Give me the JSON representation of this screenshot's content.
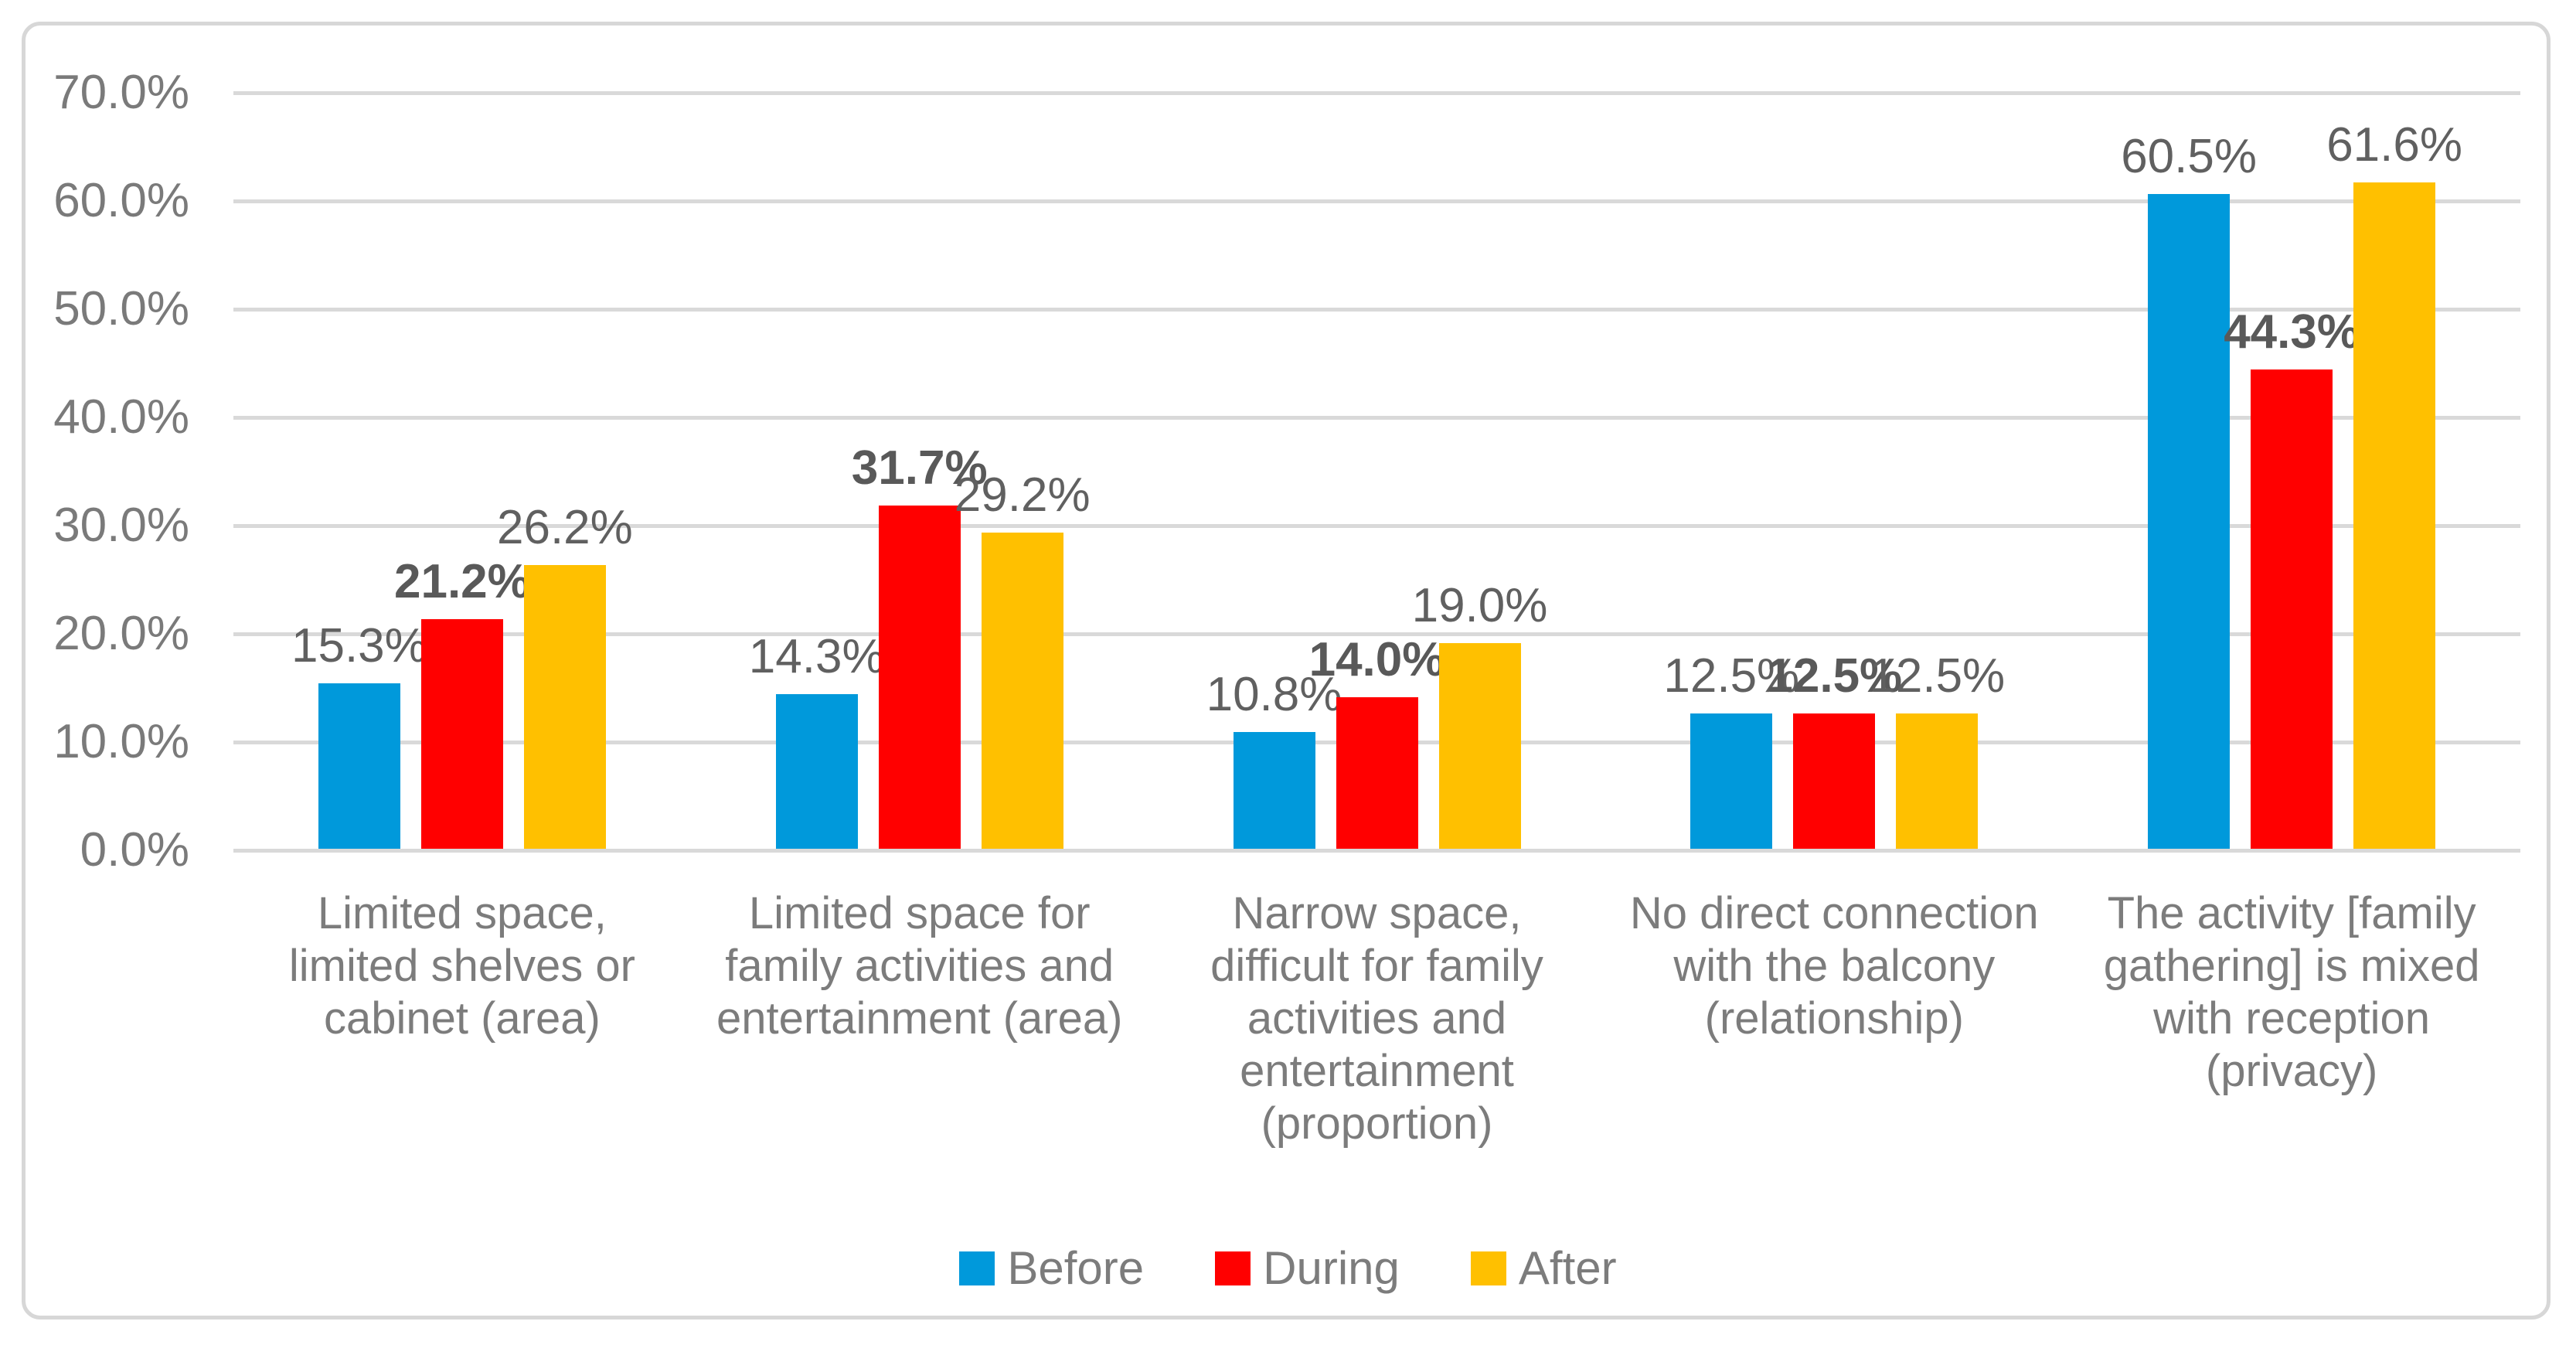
{
  "chart_data": {
    "type": "bar",
    "title": "",
    "xlabel": "",
    "ylabel": "",
    "ylim": [
      0,
      70
    ],
    "ytick_step": 10,
    "ytick_labels": [
      "0.0%",
      "10.0%",
      "20.0%",
      "30.0%",
      "40.0%",
      "50.0%",
      "60.0%",
      "70.0%"
    ],
    "grid": true,
    "legend_position": "bottom",
    "categories": [
      "Limited space,\nlimited shelves or\ncabinet (area)",
      "Limited space for\nfamily activities and\nentertainment (area)",
      "Narrow space,\ndifficult for family\nactivities and\nentertainment\n(proportion)",
      "No direct connection\nwith the balcony\n(relationship)",
      "The activity [family\ngathering] is mixed\nwith reception\n(privacy)"
    ],
    "series": [
      {
        "name": "Before",
        "color": "#0099db",
        "bold_labels": false,
        "values": [
          15.3,
          14.3,
          10.8,
          12.5,
          60.5
        ],
        "labels": [
          "15.3%",
          "14.3%",
          "10.8%",
          "12.5%",
          "60.5%"
        ]
      },
      {
        "name": "During",
        "color": "#ff0000",
        "bold_labels": true,
        "values": [
          21.2,
          31.7,
          14.0,
          12.5,
          44.3
        ],
        "labels": [
          "21.2%",
          "31.7%",
          "14.0%",
          "12.5%",
          "44.3%"
        ]
      },
      {
        "name": "After",
        "color": "#ffc000",
        "bold_labels": false,
        "values": [
          26.2,
          29.2,
          19.0,
          12.5,
          61.6
        ],
        "labels": [
          "26.2%",
          "29.2%",
          "19.0%",
          "12.5%",
          "61.6%"
        ]
      }
    ]
  },
  "colors": {
    "gridline": "#d9d9d9",
    "frame_border": "#d7d7d7",
    "axis_text": "#7a7a7a",
    "category_text": "#7c7c7c",
    "legend_text": "#7c7c7c",
    "data_label_text": "#606060",
    "background": "#ffffff"
  }
}
